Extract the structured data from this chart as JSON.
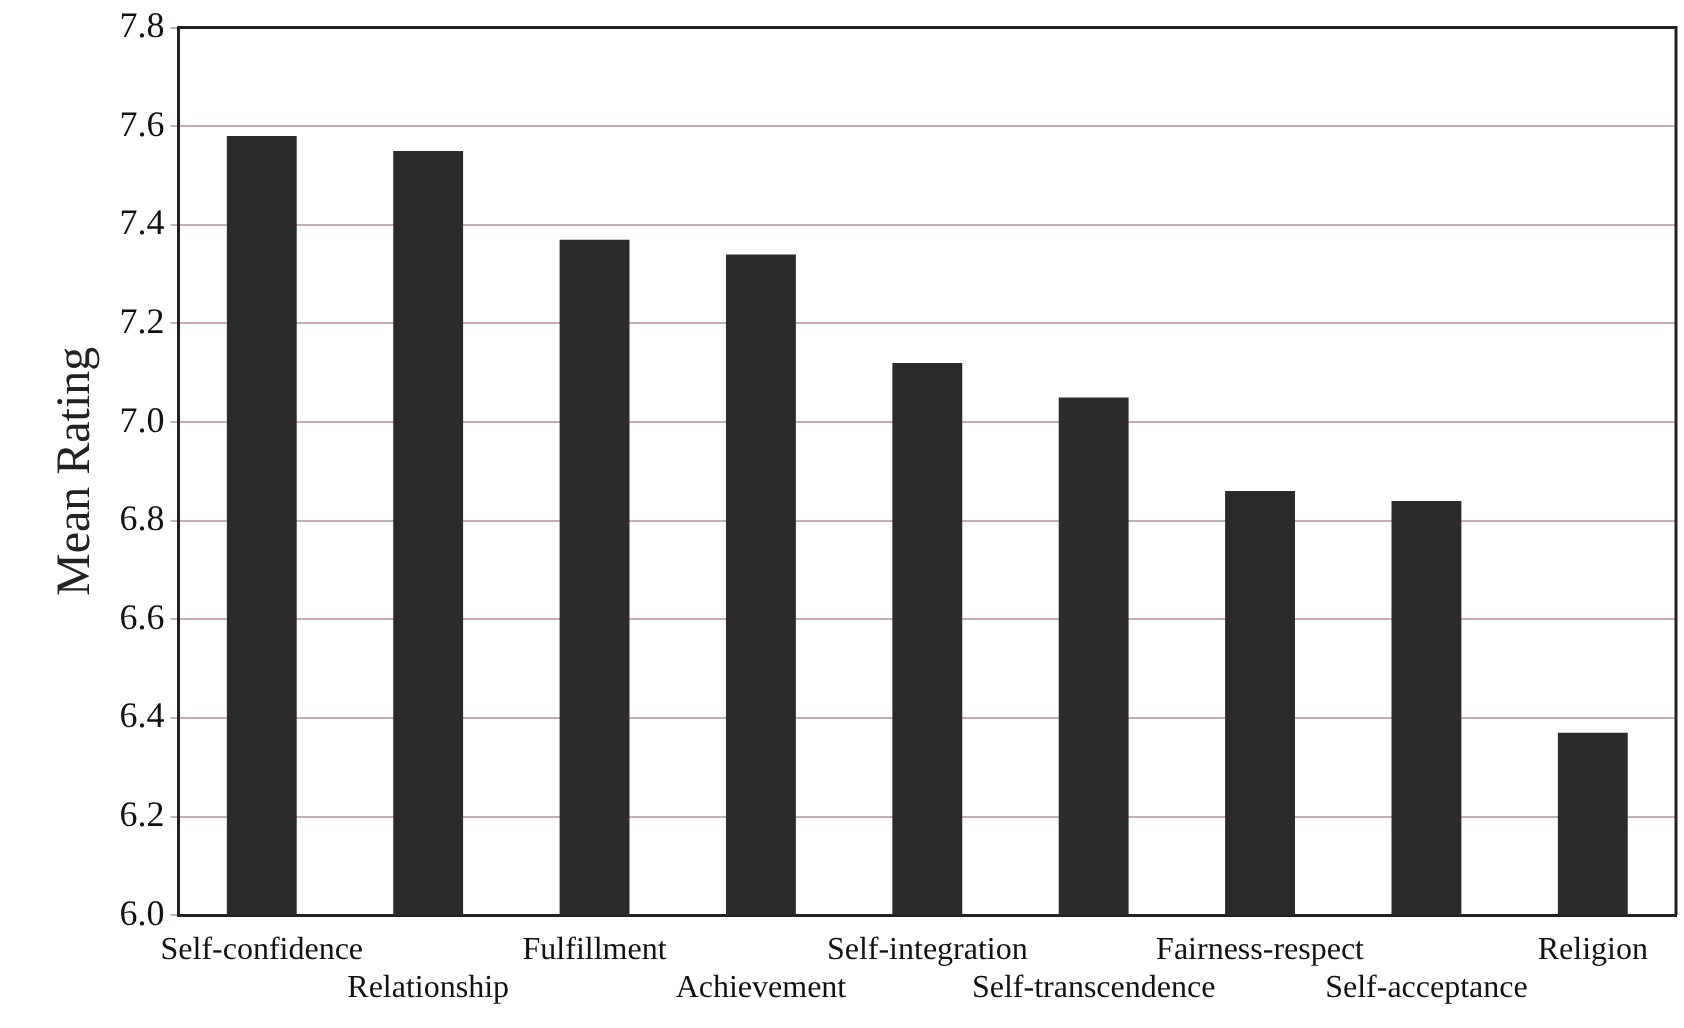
{
  "chart_data": {
    "type": "bar",
    "ylabel": "Mean Rating",
    "categories": [
      "Self-confidence",
      "Relationship",
      "Fulfillment",
      "Achievement",
      "Self-integration",
      "Self-transcendence",
      "Fairness-respect",
      "Self-acceptance",
      "Religion"
    ],
    "values": [
      7.58,
      7.55,
      7.37,
      7.34,
      7.12,
      7.05,
      6.86,
      6.84,
      6.37
    ],
    "color": "#2b2b2b",
    "ylim": [
      6.0,
      7.8
    ],
    "yticks": [
      {
        "value": 6.0,
        "label": "6.0"
      },
      {
        "value": 6.2,
        "label": "6.2"
      },
      {
        "value": 6.4,
        "label": "6.4"
      },
      {
        "value": 6.6,
        "label": "6.6"
      },
      {
        "value": 6.8,
        "label": "6.8"
      },
      {
        "value": 7.0,
        "label": "7.0"
      },
      {
        "value": 7.2,
        "label": "7.2"
      },
      {
        "value": 7.4,
        "label": "7.4"
      },
      {
        "value": 7.6,
        "label": "7.6"
      },
      {
        "value": 7.8,
        "label": "7.8"
      }
    ],
    "grid": "y",
    "legend": false
  }
}
